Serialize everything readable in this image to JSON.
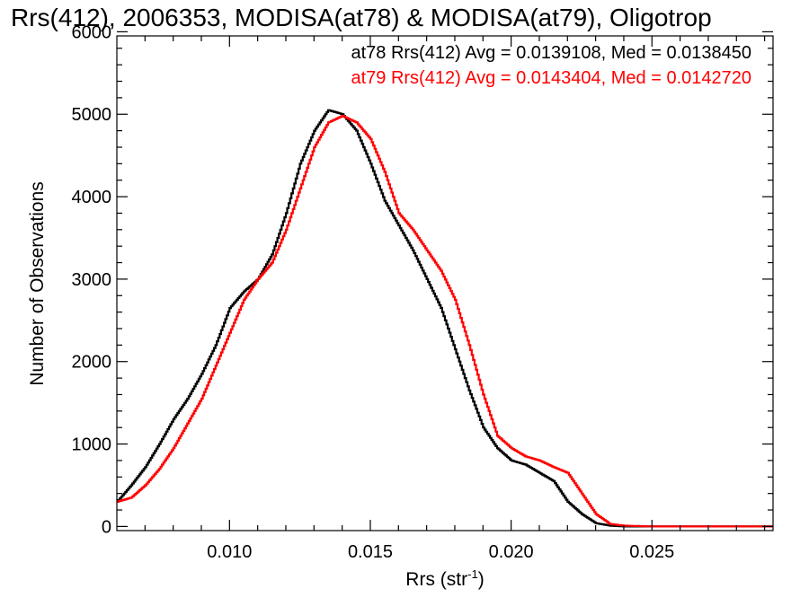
{
  "chart_data": {
    "type": "line",
    "title": "Rrs(412), 2006353, MODISA(at78) & MODISA(at79), Oligotrop",
    "xlabel": "Rrs (str",
    "xlabel_sup": "-1",
    "xlabel_close": ")",
    "ylabel": "Number of Observations",
    "xlim": [
      0.006,
      0.0293
    ],
    "ylim": [
      -50,
      5950
    ],
    "xticks": [
      {
        "value": 0.01,
        "label": "0.010"
      },
      {
        "value": 0.015,
        "label": "0.015"
      },
      {
        "value": 0.02,
        "label": "0.020"
      },
      {
        "value": 0.025,
        "label": "0.025"
      }
    ],
    "yticks": [
      {
        "value": 0,
        "label": "0"
      },
      {
        "value": 1000,
        "label": "1000"
      },
      {
        "value": 2000,
        "label": "2000"
      },
      {
        "value": 3000,
        "label": "3000"
      },
      {
        "value": 4000,
        "label": "4000"
      },
      {
        "value": 5000,
        "label": "5000"
      },
      {
        "value": 6000,
        "label": "6000"
      }
    ],
    "grid": false,
    "legend_placement": "top-right",
    "series": [
      {
        "legend": "at78 Rrs(412) Avg = 0.0139108, Med = 0.0138450",
        "color": "#000000",
        "x": [
          0.006,
          0.0065,
          0.007,
          0.0075,
          0.008,
          0.0085,
          0.009,
          0.0095,
          0.01,
          0.0105,
          0.011,
          0.0115,
          0.012,
          0.0125,
          0.013,
          0.0135,
          0.014,
          0.0145,
          0.015,
          0.0155,
          0.016,
          0.0165,
          0.017,
          0.0175,
          0.018,
          0.0185,
          0.019,
          0.0195,
          0.02,
          0.0205,
          0.021,
          0.0215,
          0.022,
          0.0225,
          0.023,
          0.0235,
          0.024,
          0.0245,
          0.025,
          0.026,
          0.027,
          0.028,
          0.0293
        ],
        "y": [
          300,
          500,
          720,
          1000,
          1300,
          1550,
          1850,
          2200,
          2650,
          2850,
          3000,
          3300,
          3800,
          4400,
          4800,
          5050,
          5000,
          4800,
          4400,
          3950,
          3650,
          3350,
          3000,
          2650,
          2150,
          1650,
          1200,
          950,
          800,
          750,
          650,
          550,
          300,
          150,
          40,
          10,
          0,
          0,
          0,
          0,
          0,
          0,
          0
        ]
      },
      {
        "legend": "at79 Rrs(412) Avg = 0.0143404, Med = 0.0142720",
        "color": "#ff0000",
        "x": [
          0.006,
          0.0065,
          0.007,
          0.0075,
          0.008,
          0.0085,
          0.009,
          0.0095,
          0.01,
          0.0105,
          0.011,
          0.0115,
          0.012,
          0.0125,
          0.013,
          0.0135,
          0.014,
          0.0145,
          0.015,
          0.0155,
          0.016,
          0.0165,
          0.017,
          0.0175,
          0.018,
          0.0185,
          0.019,
          0.0195,
          0.02,
          0.0205,
          0.021,
          0.0215,
          0.022,
          0.0225,
          0.023,
          0.0235,
          0.024,
          0.0245,
          0.025,
          0.026,
          0.027,
          0.028,
          0.0293
        ],
        "y": [
          300,
          350,
          500,
          700,
          950,
          1250,
          1550,
          1950,
          2350,
          2750,
          3000,
          3200,
          3600,
          4100,
          4600,
          4900,
          4980,
          4900,
          4700,
          4300,
          3800,
          3600,
          3350,
          3100,
          2750,
          2200,
          1600,
          1100,
          950,
          850,
          800,
          720,
          650,
          400,
          150,
          30,
          10,
          5,
          0,
          0,
          0,
          0,
          0
        ]
      }
    ]
  }
}
